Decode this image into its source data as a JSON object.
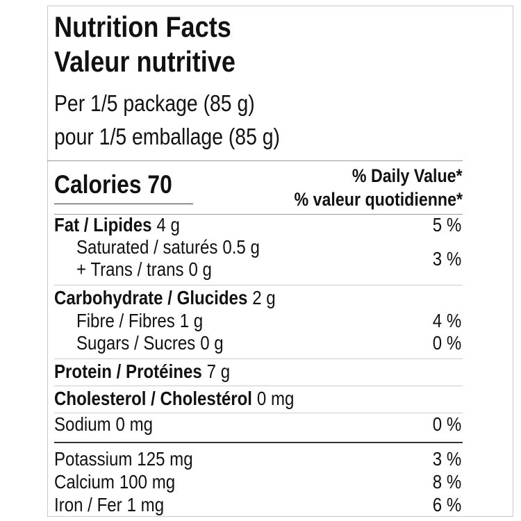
{
  "header": {
    "title_en": "Nutrition Facts",
    "title_fr": "Valeur nutritive",
    "serving_en": "Per 1/5 package (85 g)",
    "serving_fr": "pour 1/5 emballage (85 g)"
  },
  "calories": "Calories 70",
  "daily_value": {
    "en": "% Daily Value*",
    "fr": "% valeur quotidienne*"
  },
  "rows": [
    {
      "name": "Fat / Lipides",
      "amount": "4 g",
      "dv": "5 %",
      "bold": true
    },
    {
      "name": "Saturated / saturés",
      "amount": "0.5 g",
      "dv": "3 %",
      "indent": true
    },
    {
      "name": "+ Trans / trans",
      "amount": "0 g",
      "indent": true
    },
    {
      "name": "Carbohydrate / Glucides",
      "amount": "2 g",
      "bold": true
    },
    {
      "name": "Fibre / Fibres",
      "amount": "1 g",
      "dv": "4 %",
      "indent": true
    },
    {
      "name": "Sugars / Sucres",
      "amount": "0 g",
      "dv": "0 %",
      "indent": true
    },
    {
      "name": "Protein / Protéines",
      "amount": "7 g",
      "bold": true
    },
    {
      "name": "Cholesterol / Cholestérol",
      "amount": "0 mg",
      "bold": true
    },
    {
      "name": "Sodium",
      "amount": "0 mg",
      "dv": "0 %"
    },
    {
      "name": "Potassium",
      "amount": "125 mg",
      "dv": "3 %"
    },
    {
      "name": "Calcium",
      "amount": "100 mg",
      "dv": "8 %"
    },
    {
      "name": "Iron / Fer",
      "amount": "1 mg",
      "dv": "6 %"
    }
  ]
}
